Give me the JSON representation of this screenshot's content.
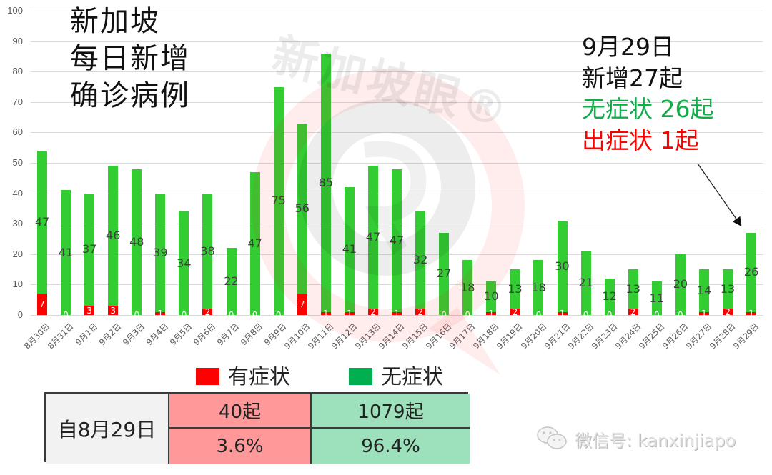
{
  "title": {
    "lines": [
      "新加坡",
      "每日新增",
      "确诊病例"
    ]
  },
  "annotation": {
    "date": "9月29日",
    "total": "新增27起",
    "asymptomatic": "无症状 26起",
    "symptomatic": "出症状 1起"
  },
  "watermark": {
    "brand": "新加坡眼®",
    "wechat_text": "微信号: kanxinjiapo",
    "wechat_icon": "wechat-icon"
  },
  "legend": [
    {
      "label": "有症状",
      "color": "#ff0000"
    },
    {
      "label": "无症状",
      "color": "#00b050"
    }
  ],
  "summary_table": {
    "row_label": "自8月29日",
    "symptomatic_count": "40起",
    "asymptomatic_count": "1079起",
    "symptomatic_pct": "3.6%",
    "asymptomatic_pct": "96.4%"
  },
  "colors": {
    "symptomatic_bar": "#ff0000",
    "asymptomatic_bar": "#33cc33",
    "legend_green": "#00b050",
    "table_red": "#ff9999",
    "table_green": "#9de0bc",
    "gridline": "#d9d9d9"
  },
  "chart_data": {
    "type": "bar",
    "stacked": true,
    "title": "新加坡每日新增确诊病例",
    "xlabel": "",
    "ylabel": "",
    "ylim": [
      0,
      100
    ],
    "yticks": [
      0,
      10,
      20,
      30,
      40,
      50,
      60,
      70,
      80,
      90,
      100
    ],
    "grid": true,
    "legend_position": "bottom",
    "categories": [
      "8月30日",
      "8月31日",
      "9月1日",
      "9月2日",
      "9月3日",
      "9月4日",
      "9月5日",
      "9月6日",
      "9月7日",
      "9月8日",
      "9月9日",
      "9月10日",
      "9月11日",
      "9月12日",
      "9月13日",
      "9月14日",
      "9月15日",
      "9月16日",
      "9月17日",
      "9月18日",
      "9月19日",
      "9月20日",
      "9月21日",
      "9月22日",
      "9月23日",
      "9月24日",
      "9月25日",
      "9月26日",
      "9月27日",
      "9月28日",
      "9月29日"
    ],
    "series": [
      {
        "name": "有症状",
        "color": "#ff0000",
        "values": [
          7,
          0,
          3,
          3,
          0,
          1,
          0,
          2,
          0,
          0,
          0,
          7,
          1,
          1,
          2,
          1,
          2,
          0,
          0,
          1,
          2,
          0,
          1,
          0,
          0,
          2,
          0,
          0,
          1,
          2,
          1
        ]
      },
      {
        "name": "无症状",
        "color": "#33cc33",
        "values": [
          47,
          41,
          37,
          46,
          48,
          39,
          34,
          38,
          22,
          47,
          75,
          56,
          85,
          41,
          47,
          47,
          32,
          27,
          18,
          10,
          13,
          18,
          30,
          21,
          12,
          13,
          11,
          20,
          14,
          13,
          26
        ]
      }
    ],
    "annotations": [
      {
        "text": "9月29日 新增27起 无症状 26起 出症状 1起",
        "points_to": "9月29日"
      }
    ]
  }
}
